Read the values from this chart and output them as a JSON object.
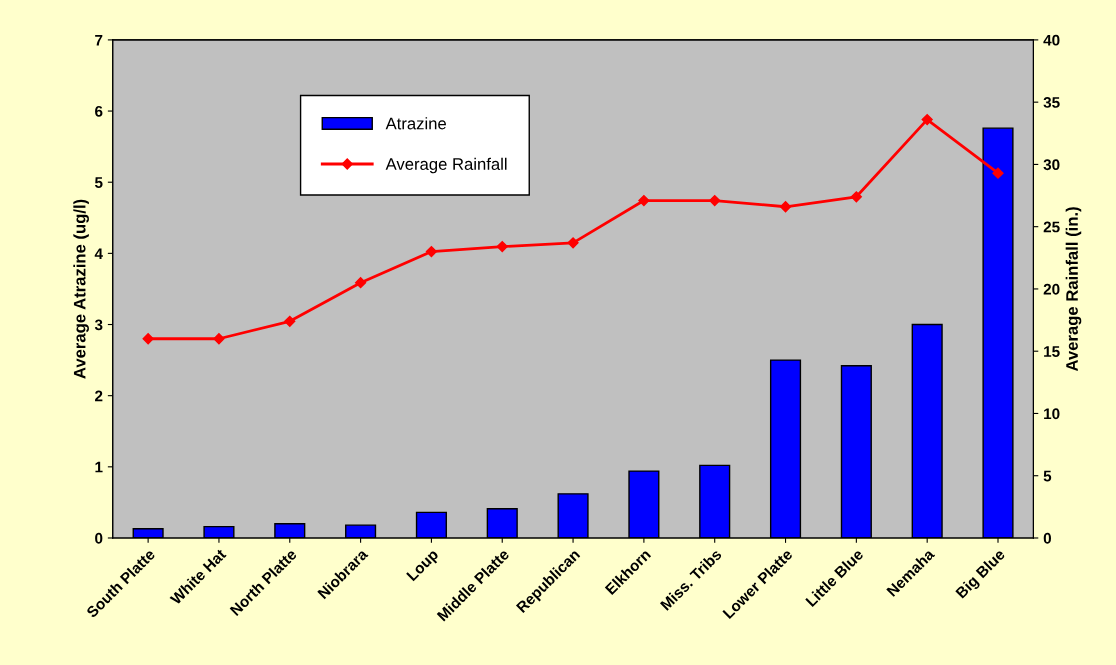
{
  "chart_data": {
    "type": "bar",
    "ylabel": "Average Atrazine (ug/l)",
    "y2label": "Average Rainfall (in.)",
    "categories": [
      "South Platte",
      "White Hat",
      "North Platte",
      "Niobrara",
      "Loup",
      "Middle Platte",
      "Republican",
      "Elkhorn",
      "Miss. Tribs",
      "Lower Platte",
      "Little Blue",
      "Nemaha",
      "Big Blue"
    ],
    "series": [
      {
        "name": "Atrazine",
        "color": "#0000ff",
        "values": [
          0.13,
          0.16,
          0.2,
          0.18,
          0.36,
          0.41,
          0.62,
          0.94,
          1.02,
          2.5,
          2.42,
          3.0,
          5.76
        ]
      },
      {
        "name": "Average Rainfall",
        "type": "line",
        "axis": "y2",
        "color": "#ff0000",
        "values": [
          16,
          16,
          17.4,
          20.5,
          23,
          23.4,
          23.7,
          27.1,
          27.1,
          26.6,
          27.4,
          33.6,
          29.3
        ]
      }
    ],
    "ylim": [
      0,
      7
    ],
    "yticks": [
      0,
      1,
      2,
      3,
      4,
      5,
      6,
      7
    ],
    "y2lim": [
      0,
      40
    ],
    "y2ticks": [
      0,
      5,
      10,
      15,
      20,
      25,
      30,
      35,
      40
    ],
    "marker": "diamond",
    "legend": "top",
    "grid": false
  }
}
